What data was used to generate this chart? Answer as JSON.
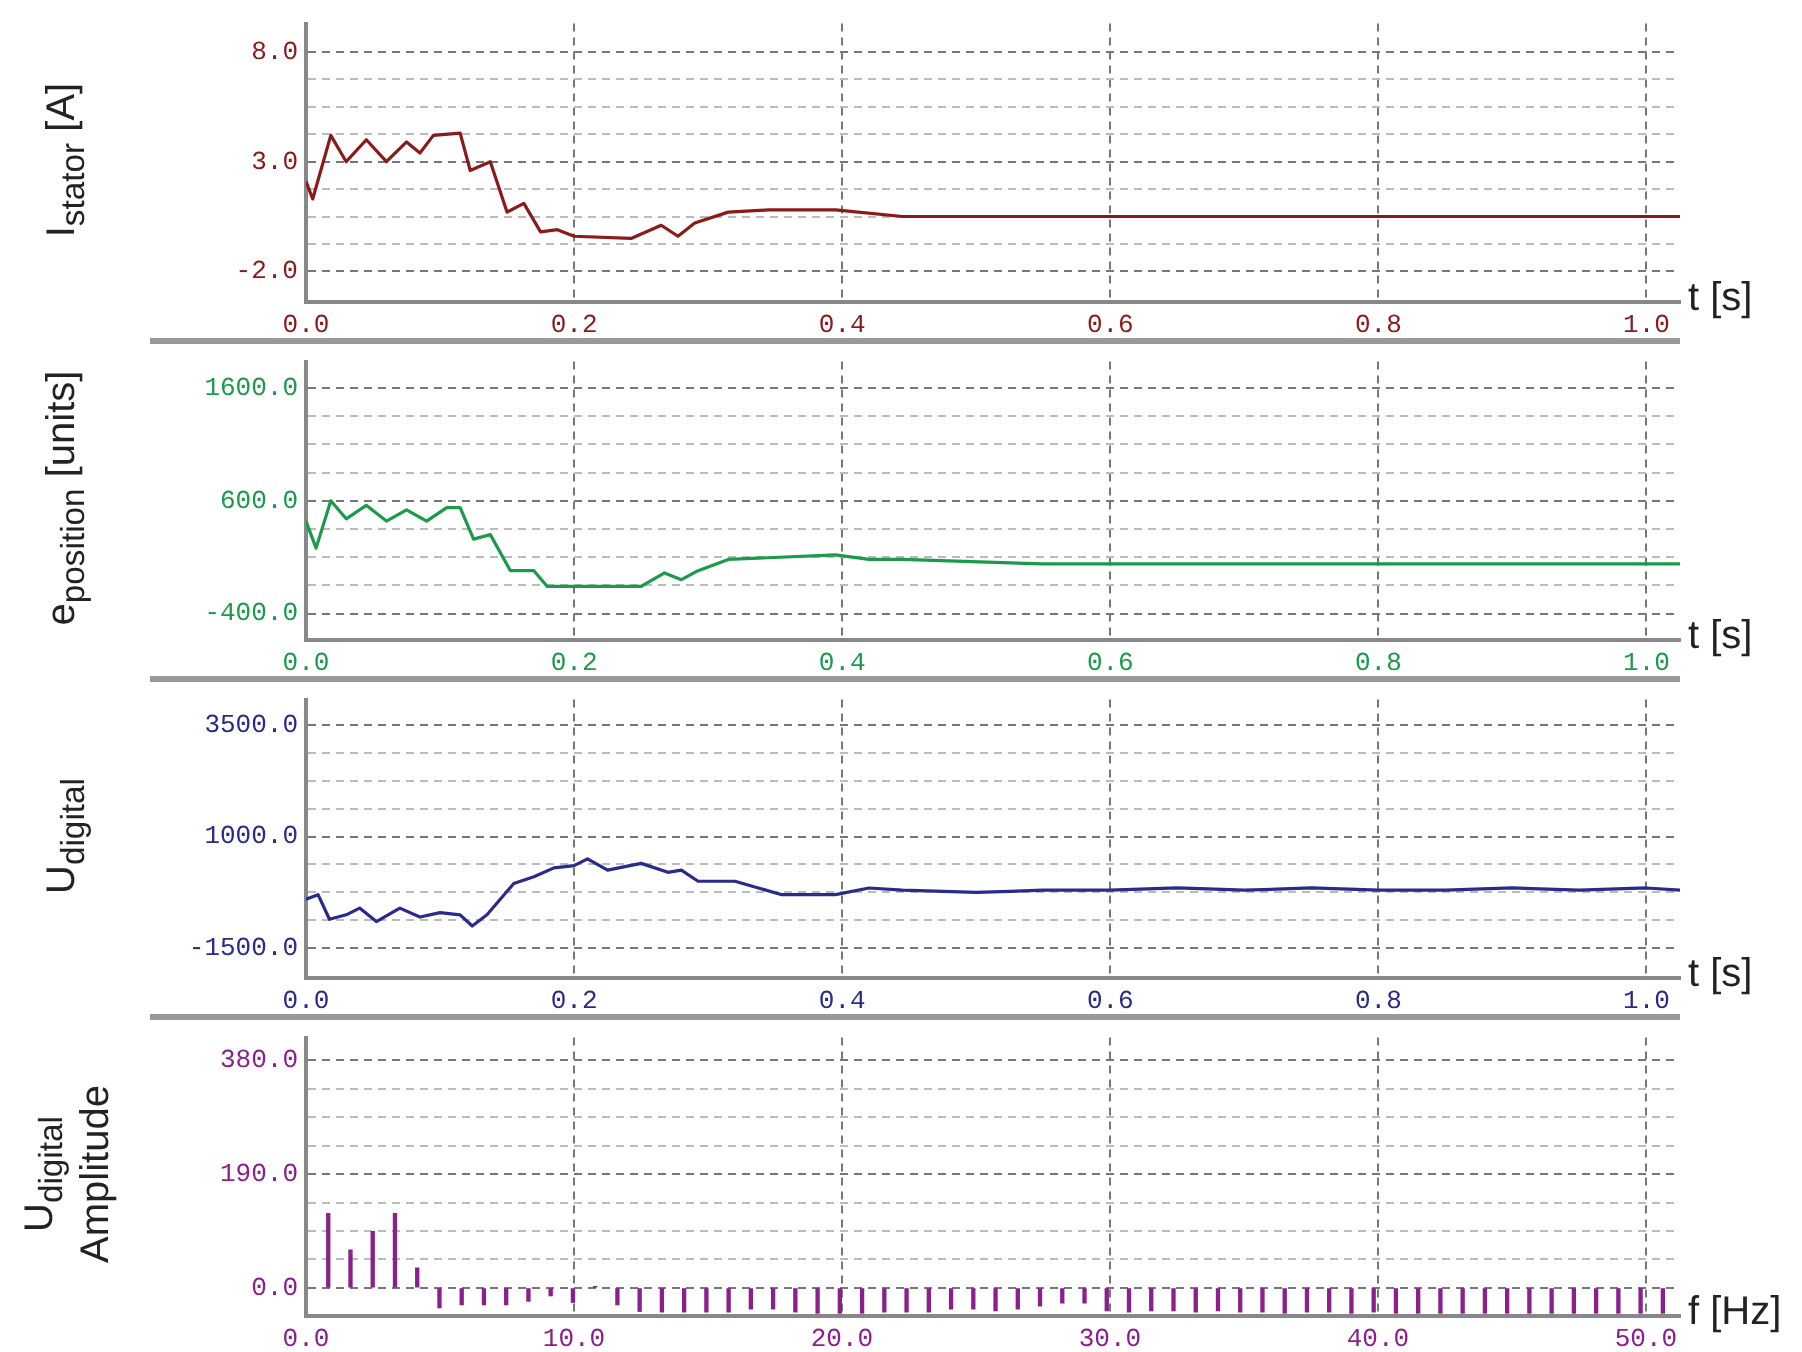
{
  "chart_data": [
    {
      "type": "line",
      "ylabel": "I$_{stator}$ [A]",
      "xlabel": "t [s]",
      "x": [
        0,
        0.005,
        0.0185,
        0.03,
        0.045,
        0.06,
        0.075,
        0.085,
        0.095,
        0.115,
        0.1225,
        0.1375,
        0.15,
        0.1625,
        0.175,
        0.1875,
        0.2,
        0.2425,
        0.265,
        0.2775,
        0.29,
        0.315,
        0.345,
        0.395,
        0.445,
        0.5,
        1.025
      ],
      "series": [
        {
          "color": "#8b1a1a",
          "values": [
            2.1,
            1.3,
            4.2,
            3.0,
            4.0,
            3.0,
            3.9,
            3.4,
            4.2,
            4.3,
            2.6,
            3.0,
            0.7,
            1.1,
            -0.2,
            -0.1,
            -0.4,
            -0.5,
            0.1,
            -0.4,
            0.2,
            0.7,
            0.8,
            0.8,
            0.5,
            0.5,
            0.5
          ]
        }
      ],
      "xlim": [
        0,
        1.025
      ],
      "ylim": [
        -3.4,
        9.3
      ],
      "xticks": [
        {
          "value": 0,
          "label": "0.0"
        },
        {
          "value": 0.2,
          "label": "0.2"
        },
        {
          "value": 0.4,
          "label": "0.4"
        },
        {
          "value": 0.6,
          "label": "0.6"
        },
        {
          "value": 0.8,
          "label": "0.8"
        },
        {
          "value": 1,
          "label": "1.0"
        }
      ],
      "yticks": [
        {
          "value": -2,
          "label": "-2.0"
        },
        {
          "value": -0.75,
          "label": null
        },
        {
          "value": 0.5,
          "label": null
        },
        {
          "value": 1.75,
          "label": null
        },
        {
          "value": 3,
          "label": "3.0"
        },
        {
          "value": 4.25,
          "label": null
        },
        {
          "value": 5.5,
          "label": null
        },
        {
          "value": 6.75,
          "label": null
        },
        {
          "value": 8,
          "label": "8.0"
        }
      ],
      "grid": true
    },
    {
      "type": "line",
      "ylabel": "e$_{position}$ [units]",
      "xlabel": "t [s]",
      "x": [
        0,
        0.0075,
        0.0185,
        0.03,
        0.045,
        0.06,
        0.075,
        0.09,
        0.105,
        0.115,
        0.125,
        0.1375,
        0.1525,
        0.17,
        0.18,
        0.2,
        0.25,
        0.2675,
        0.28,
        0.2925,
        0.315,
        0.395,
        0.42,
        0.445,
        0.55,
        1.025
      ],
      "series": [
        {
          "color": "#1a9a4a",
          "values": [
            420,
            180,
            600,
            440,
            560,
            420,
            520,
            420,
            540,
            540,
            260,
            300,
            -20,
            -20,
            -160,
            -160,
            -160,
            -40,
            -100,
            -20,
            80,
            120,
            80,
            80,
            40,
            40
          ]
        }
      ],
      "xlim": [
        0,
        1.025
      ],
      "ylim": [
        -635,
        1835
      ],
      "xticks": [
        {
          "value": 0,
          "label": "0.0"
        },
        {
          "value": 0.2,
          "label": "0.2"
        },
        {
          "value": 0.4,
          "label": "0.4"
        },
        {
          "value": 0.6,
          "label": "0.6"
        },
        {
          "value": 0.8,
          "label": "0.8"
        },
        {
          "value": 1,
          "label": "1.0"
        }
      ],
      "yticks": [
        {
          "value": -400,
          "label": "-400.0"
        },
        {
          "value": -150,
          "label": null
        },
        {
          "value": 100,
          "label": null
        },
        {
          "value": 350,
          "label": null
        },
        {
          "value": 600,
          "label": "600.0"
        },
        {
          "value": 850,
          "label": null
        },
        {
          "value": 1100,
          "label": null
        },
        {
          "value": 1350,
          "label": null
        },
        {
          "value": 1600,
          "label": "1600.0"
        }
      ],
      "grid": true
    },
    {
      "type": "line",
      "ylabel": "U$_{digital}$",
      "xlabel": "t [s]",
      "x": [
        0,
        0.009,
        0.0175,
        0.03,
        0.04,
        0.0525,
        0.07,
        0.085,
        0.1,
        0.115,
        0.124,
        0.135,
        0.155,
        0.17,
        0.185,
        0.2,
        0.21,
        0.225,
        0.25,
        0.27,
        0.28,
        0.2925,
        0.32,
        0.355,
        0.395,
        0.42,
        0.445,
        0.5,
        0.55,
        0.6,
        0.65,
        0.7,
        0.75,
        0.8,
        0.85,
        0.9,
        0.95,
        1.0,
        1.025
      ],
      "series": [
        {
          "color": "#2a2a8a",
          "values": [
            -400,
            -300,
            -850,
            -750,
            -600,
            -900,
            -600,
            -800,
            -700,
            -750,
            -1000,
            -750,
            -50,
            100,
            300,
            350,
            500,
            250,
            400,
            200,
            250,
            0,
            0,
            -300,
            -300,
            -150,
            -200,
            -250,
            -200,
            -200,
            -150,
            -200,
            -150,
            -200,
            -200,
            -150,
            -200,
            -150,
            -200
          ]
        }
      ],
      "xlim": [
        0,
        1.025
      ],
      "ylim": [
        -2162,
        4060
      ],
      "xticks": [
        {
          "value": 0,
          "label": "0.0"
        },
        {
          "value": 0.2,
          "label": "0.2"
        },
        {
          "value": 0.4,
          "label": "0.4"
        },
        {
          "value": 0.6,
          "label": "0.6"
        },
        {
          "value": 0.8,
          "label": "0.8"
        },
        {
          "value": 1,
          "label": "1.0"
        }
      ],
      "yticks": [
        {
          "value": -1500,
          "label": "-1500.0"
        },
        {
          "value": -875,
          "label": null
        },
        {
          "value": -250,
          "label": null
        },
        {
          "value": 375,
          "label": null
        },
        {
          "value": 1000,
          "label": "1000.0"
        },
        {
          "value": 1625,
          "label": null
        },
        {
          "value": 2250,
          "label": null
        },
        {
          "value": 2875,
          "label": null
        },
        {
          "value": 3500,
          "label": "3500.0"
        }
      ],
      "grid": true
    },
    {
      "type": "bar",
      "ylabel": "U$_{digital}$ Amplitude",
      "xlabel": "f [Hz]",
      "x": [
        0.83,
        1.66,
        2.49,
        3.32,
        4.15,
        4.98,
        5.81,
        6.64,
        7.47,
        8.3,
        9.13,
        9.96,
        10.79,
        11.62,
        12.45,
        13.28,
        14.11,
        14.94,
        15.77,
        16.6,
        17.43,
        18.26,
        19.09,
        19.92,
        20.75,
        21.58,
        22.41,
        23.24,
        24.07,
        24.9,
        25.73,
        26.56,
        27.39,
        28.22,
        29.05,
        29.88,
        30.71,
        31.54,
        32.37,
        33.2,
        34.03,
        34.86,
        35.69,
        36.52,
        37.35,
        38.18,
        39.01,
        39.84,
        40.67,
        41.5,
        42.33,
        43.16,
        43.99,
        44.82,
        45.65,
        46.48,
        47.31,
        48.14,
        48.97,
        49.8,
        50.63
      ],
      "series": [
        {
          "color": "#8b1f8b",
          "values": [
            124,
            63,
            94,
            124,
            33,
            -33,
            -28,
            -28,
            -28,
            -22,
            -13,
            -24,
            2,
            -28,
            -39,
            -40,
            -40,
            -40,
            -40,
            -35,
            -35,
            -40,
            -42,
            -42,
            -42,
            -40,
            -40,
            -40,
            -35,
            -35,
            -38,
            -35,
            -30,
            -25,
            -25,
            -38,
            -40,
            -38,
            -38,
            -40,
            -38,
            -40,
            -40,
            -42,
            -40,
            -40,
            -42,
            -40,
            -42,
            -42,
            -42,
            -42,
            -42,
            -42,
            -42,
            -42,
            -42,
            -42,
            -42,
            -42,
            -42
          ]
        }
      ],
      "xlim": [
        0,
        51.27
      ],
      "ylim": [
        -47,
        418
      ],
      "xticks": [
        {
          "value": 0,
          "label": "0.0"
        },
        {
          "value": 10,
          "label": "10.0"
        },
        {
          "value": 20,
          "label": "20.0"
        },
        {
          "value": 30,
          "label": "30.0"
        },
        {
          "value": 40,
          "label": "40.0"
        },
        {
          "value": 50,
          "label": "50.0"
        }
      ],
      "yticks": [
        {
          "value": 0,
          "label": "0.0"
        },
        {
          "value": 47.5,
          "label": null
        },
        {
          "value": 95,
          "label": null
        },
        {
          "value": 142.5,
          "label": null
        },
        {
          "value": 190,
          "label": "190.0"
        },
        {
          "value": 237.5,
          "label": null
        },
        {
          "value": 285,
          "label": null
        },
        {
          "value": 332.5,
          "label": null
        },
        {
          "value": 380,
          "label": "380.0"
        }
      ],
      "grid": true
    }
  ]
}
